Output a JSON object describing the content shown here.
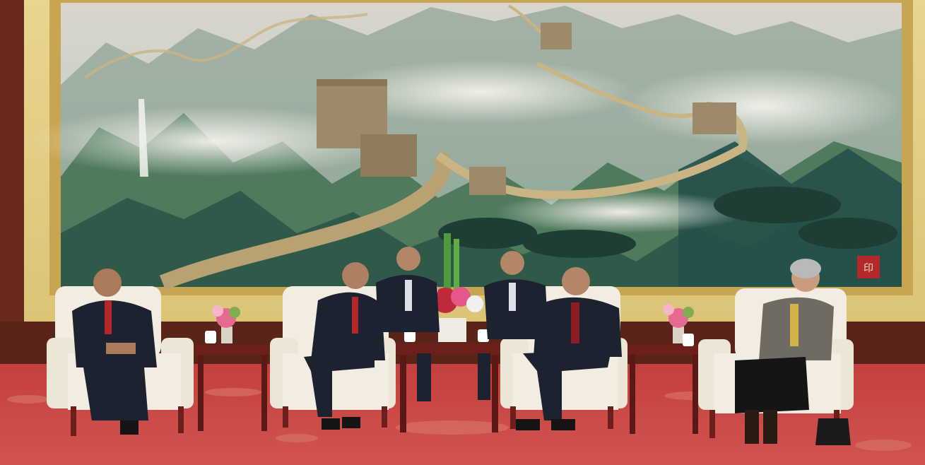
{
  "scene": {
    "description_kind": "photograph",
    "palette": {
      "carpet": "#c9433e",
      "carpet_dark": "#a9302e",
      "wall_gold": "#e4cf87",
      "wood_panel": "#5a2518",
      "frame_gold": "#c8a553",
      "chair_cream": "#f2ede0",
      "chair_wood": "#6d1f1c",
      "suit_dark": "#1d2230",
      "tie_red": "#b3262a",
      "mountain_green": "#4f7a5c",
      "mist": "#e8e6df",
      "great_wall": "#b8a274"
    },
    "painting": {
      "seal": "印"
    },
    "people": [
      {
        "role": "delegate"
      },
      {
        "role": "guest"
      },
      {
        "role": "interpreter"
      },
      {
        "role": "interpreter"
      },
      {
        "role": "host"
      },
      {
        "role": "delegate"
      }
    ]
  }
}
